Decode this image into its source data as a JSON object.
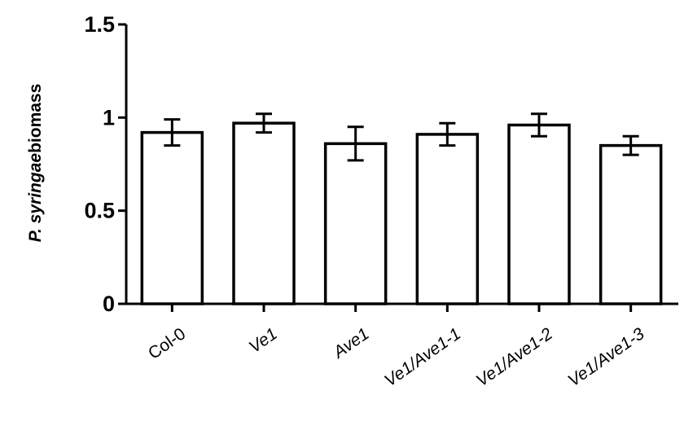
{
  "chart_data": {
    "type": "bar",
    "title": "",
    "xlabel": "",
    "ylabel": {
      "italic_part": "P. syringae",
      "regular_part": "biomass"
    },
    "categories": [
      "Col-0",
      "Ve1",
      "Ave1",
      "Ve1/Ave1-1",
      "Ve1/Ave1-2",
      "Ve1/Ave1-3"
    ],
    "values": [
      0.92,
      0.97,
      0.86,
      0.91,
      0.96,
      0.85
    ],
    "errors": [
      0.07,
      0.05,
      0.09,
      0.06,
      0.06,
      0.05
    ],
    "ylim": [
      0,
      1.5
    ],
    "yticks": [
      0,
      0.5,
      1,
      1.5
    ],
    "ytick_labels": [
      "0",
      "0.5",
      "1",
      "1.5"
    ],
    "grid": false,
    "legend": "none",
    "bar_fill": "#ffffff",
    "bar_stroke": "#000000"
  }
}
